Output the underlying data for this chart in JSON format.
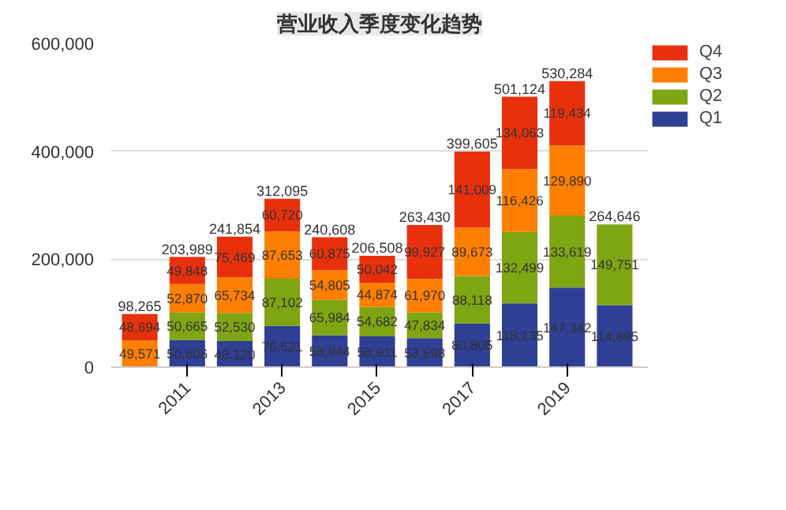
{
  "chart_data": {
    "type": "bar",
    "title": "营业收入季度变化趋势",
    "stacked": true,
    "categories": [
      null,
      "2011",
      null,
      "2013",
      null,
      "2015",
      null,
      "2017",
      null,
      "2019",
      null
    ],
    "series": [
      {
        "name": "Q1",
        "color": "#2e3f94",
        "values": [
          null,
          50606,
          48120,
          76621,
          58944,
          56911,
          53698,
          80805,
          118135,
          147342,
          114895
        ],
        "value_labels": [
          null,
          "50,606",
          "48,120",
          "76,621",
          "58,944",
          "56,911",
          "53,698",
          "80,805",
          "118,135",
          "147,342",
          "114,895"
        ]
      },
      {
        "name": "Q2",
        "color": "#7fa513",
        "values": [
          null,
          50665,
          52530,
          87102,
          65984,
          54682,
          47834,
          88118,
          132499,
          133619,
          149751
        ],
        "value_labels": [
          null,
          "50,665",
          "52,530",
          "87,102",
          "65,984",
          "54,682",
          "47,834",
          "88,118",
          "132,499",
          "133,619",
          "149,751"
        ]
      },
      {
        "name": "Q3",
        "color": "#ff7f00",
        "values": [
          49571,
          52870,
          65734,
          87653,
          54805,
          44874,
          61970,
          89673,
          116426,
          129890,
          null
        ],
        "value_labels": [
          "49,571",
          "52,870",
          "65,734",
          "87,653",
          "54,805",
          "44,874",
          "61,970",
          "89,673",
          "116,426",
          "129,890",
          null
        ]
      },
      {
        "name": "Q4",
        "color": "#e8300c",
        "values": [
          48694,
          49848,
          75469,
          60720,
          60875,
          50042,
          99927,
          141009,
          134063,
          119434,
          null
        ],
        "value_labels": [
          "48,694",
          "49,848",
          "75,469",
          "60,720",
          "60,875",
          "50,042",
          "99,927",
          "141,009",
          "134,063",
          "119,434",
          null
        ]
      }
    ],
    "totals": [
      "98,265",
      "203,989",
      "241,854",
      "312,095",
      "240,608",
      "206,508",
      "263,430",
      "399,605",
      "501,124",
      "530,284",
      "264,646"
    ],
    "ylim": [
      0,
      600000
    ],
    "yticks": [
      0,
      {
        "value": 200000,
        "label": "200,000"
      },
      {
        "value": 400000,
        "label": "400,000"
      },
      {
        "value": 600000,
        "label": "600,000"
      }
    ],
    "grid": "y",
    "legend": "top right"
  }
}
